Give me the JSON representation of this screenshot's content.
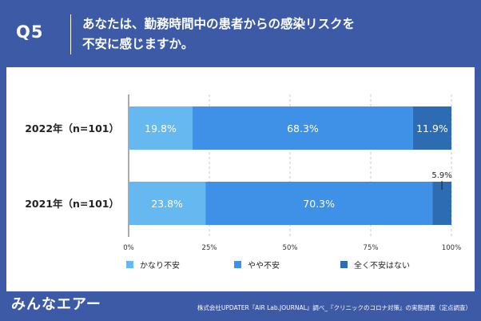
{
  "question": {
    "label": "Q5",
    "line1": "あなたは、勤務時間中の患者からの感染リスクを",
    "line2": "不安に感じますか。"
  },
  "footer": {
    "logo": "みんなエアー",
    "source": "株式会社UPDATER『AIR Lab.JOURNAL』調べ_『クリニックのコロナ対策』の実態調査（定点調査）"
  },
  "colors": {
    "header_bg": "#3d5aa6",
    "series_1": "#66b8f0",
    "series_2": "#3f91e8",
    "series_3": "#2d6bb3"
  },
  "chart_data": {
    "type": "bar",
    "orientation": "horizontal",
    "stacked": true,
    "categories": [
      "2022年（n=101）",
      "2021年（n=101）"
    ],
    "series": [
      {
        "name": "かなり不安",
        "values": [
          19.8,
          23.8
        ],
        "labels": [
          "19.8%",
          "23.8%"
        ]
      },
      {
        "name": "やや不安",
        "values": [
          68.3,
          70.3
        ],
        "labels": [
          "68.3%",
          "70.3%"
        ]
      },
      {
        "name": "全く不安はない",
        "values": [
          11.9,
          5.9
        ],
        "labels": [
          "11.9%",
          "5.9%"
        ]
      }
    ],
    "xlim": [
      0,
      100
    ],
    "x_ticks": [
      "0%",
      "25%",
      "50%",
      "75%",
      "100%"
    ],
    "grid": true,
    "legend_position": "bottom"
  }
}
